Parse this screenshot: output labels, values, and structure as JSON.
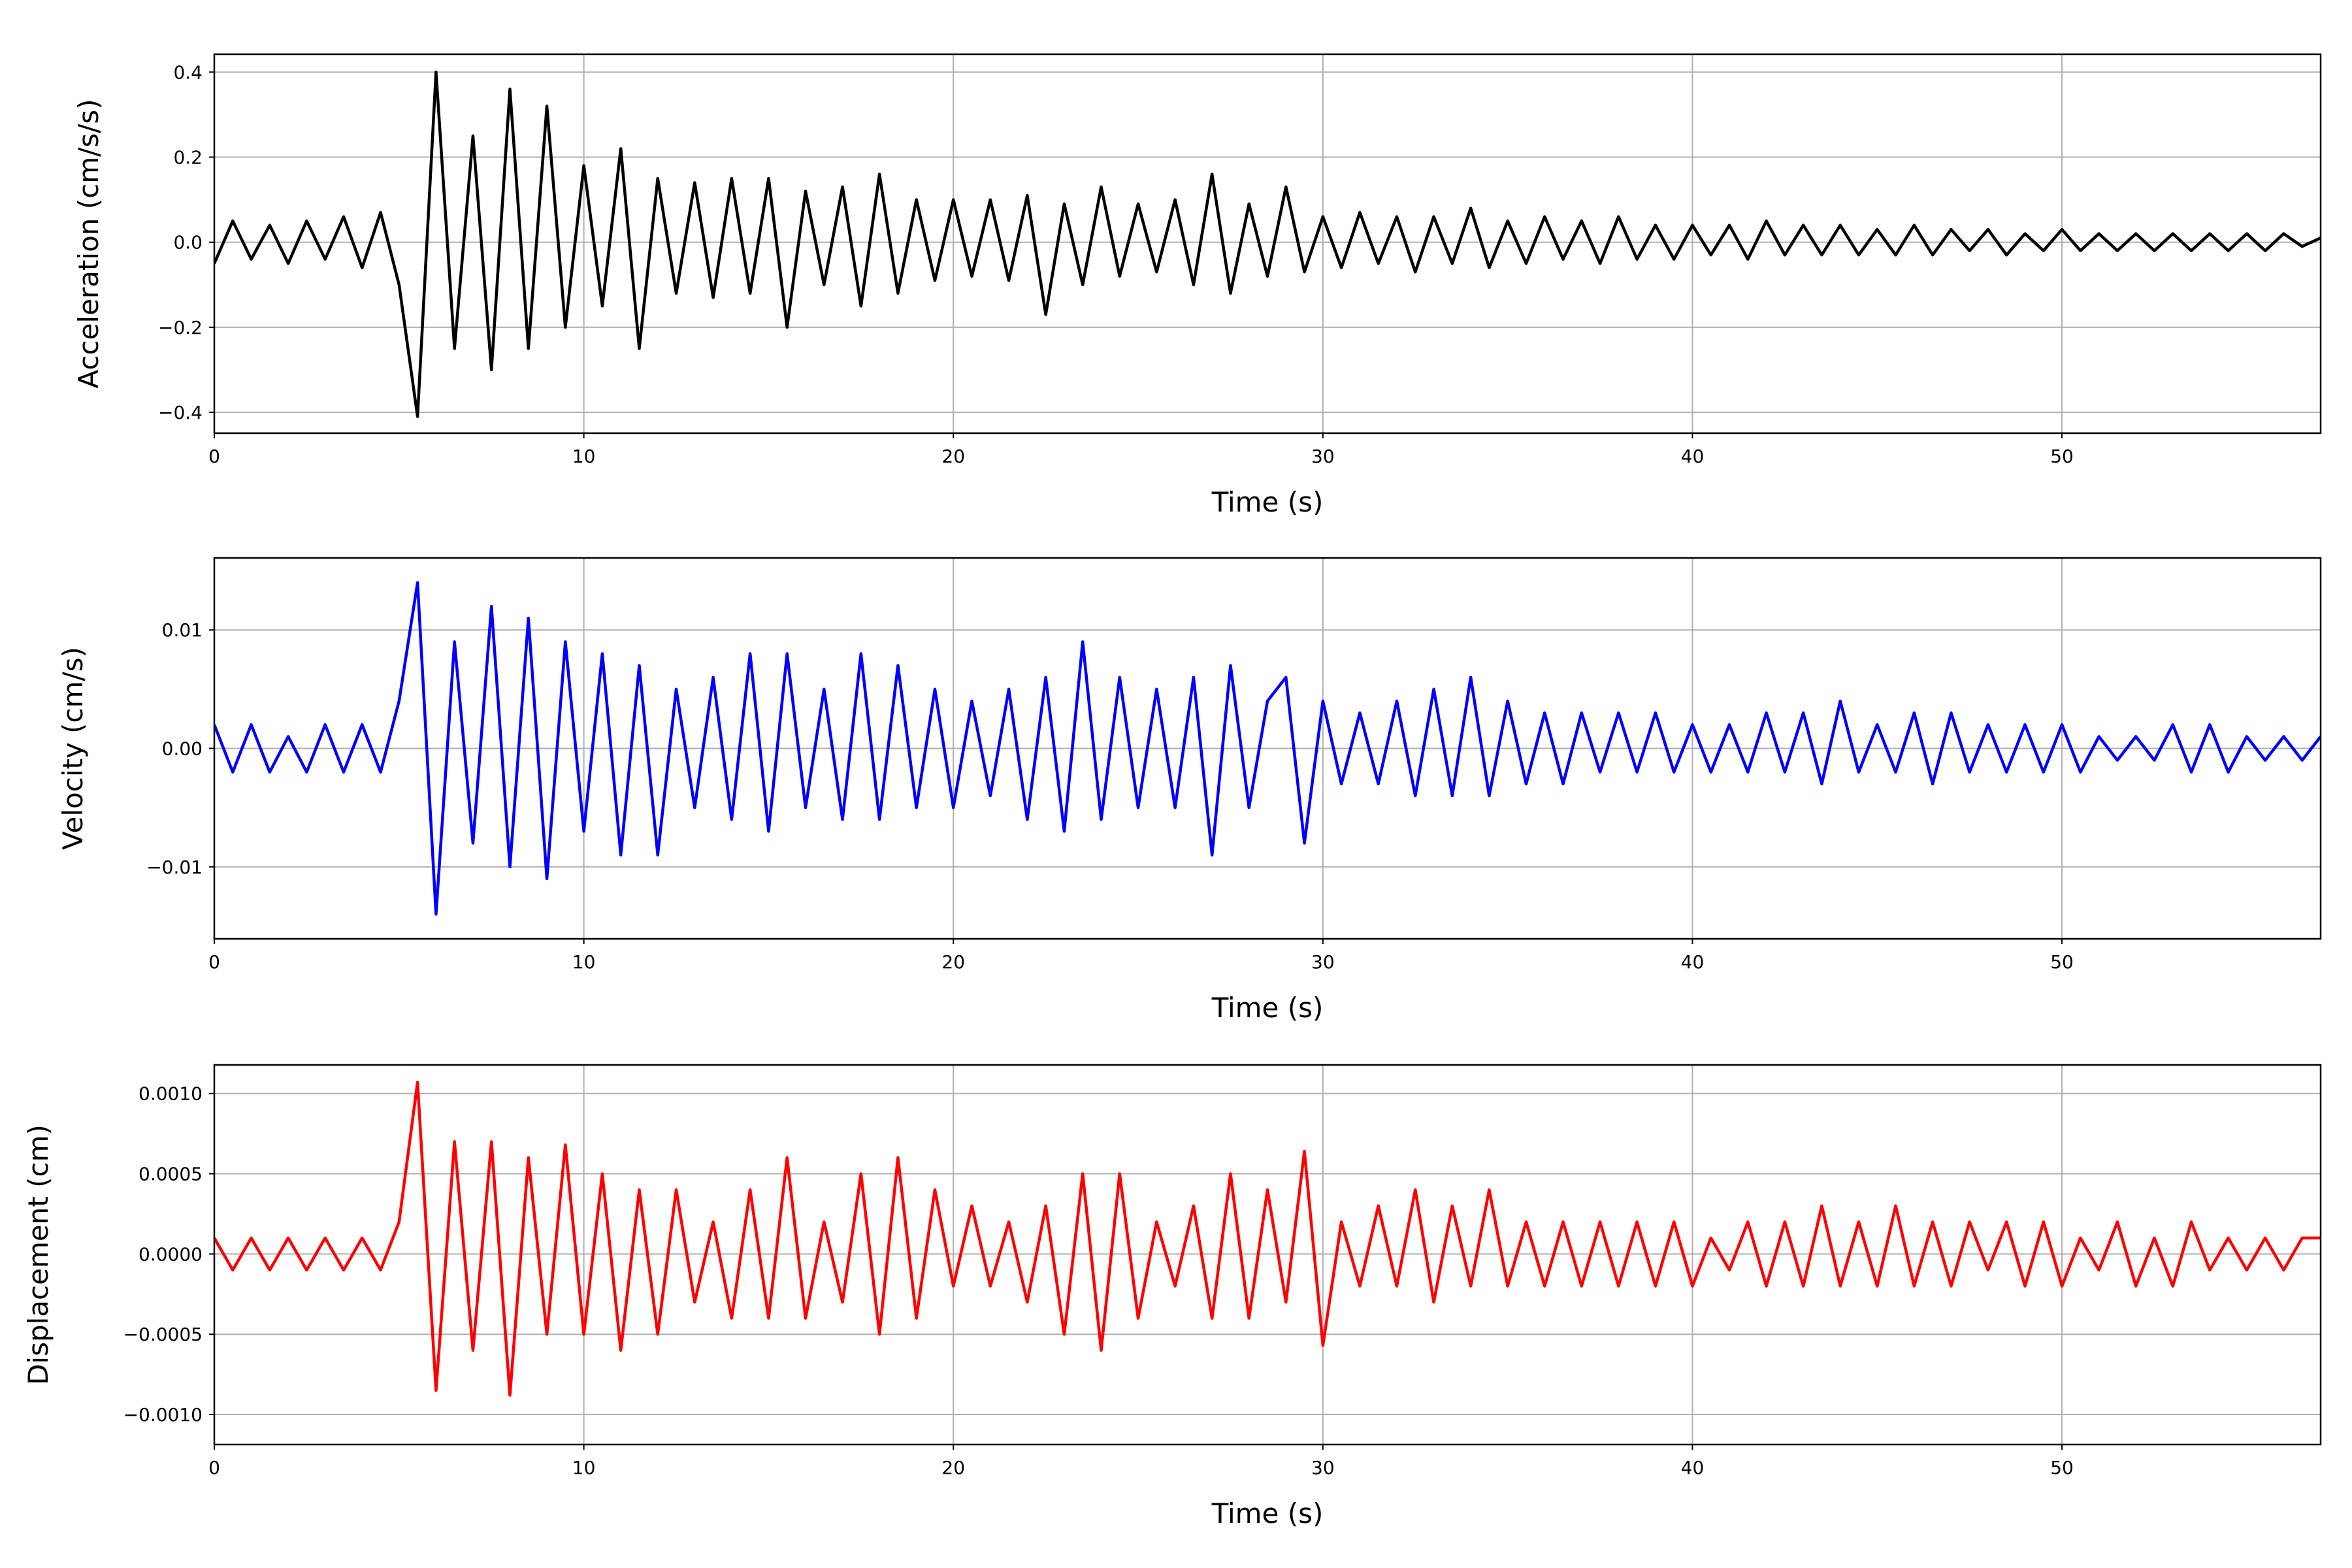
{
  "chart_data": [
    {
      "type": "line",
      "xlabel": "Time (s)",
      "ylabel": "Acceleration (cm/s/s)",
      "color": "#000000",
      "grid": true,
      "xlim": [
        0,
        57
      ],
      "xticks": [
        0,
        10,
        20,
        30,
        40,
        50
      ],
      "ylim": [
        -0.449,
        0.442
      ],
      "yticks": [
        {
          "value": -0.4,
          "label": "−0.4"
        },
        {
          "value": -0.2,
          "label": "−0.2"
        },
        {
          "value": 0,
          "label": "0.0"
        },
        0.2,
        0.4
      ],
      "x": [
        0,
        0.5,
        1,
        1.5,
        2,
        2.5,
        3,
        3.5,
        4,
        4.5,
        5,
        5.5,
        6,
        6.5,
        7,
        7.5,
        8,
        8.5,
        9,
        9.5,
        10,
        10.5,
        11,
        11.5,
        12,
        12.5,
        13,
        13.5,
        14,
        14.5,
        15,
        15.5,
        16,
        16.5,
        17,
        17.5,
        18,
        18.5,
        19,
        19.5,
        20,
        20.5,
        21,
        21.5,
        22,
        22.5,
        23,
        23.5,
        24,
        24.5,
        25,
        25.5,
        26,
        26.5,
        27,
        27.5,
        28,
        28.5,
        29,
        29.5,
        30,
        30.5,
        31,
        31.5,
        32,
        32.5,
        33,
        33.5,
        34,
        34.5,
        35,
        35.5,
        36,
        36.5,
        37,
        37.5,
        38,
        38.5,
        39,
        39.5,
        40,
        40.5,
        41,
        41.5,
        42,
        42.5,
        43,
        43.5,
        44,
        44.5,
        45,
        45.5,
        46,
        46.5,
        47,
        47.5,
        48,
        48.5,
        49,
        49.5,
        50,
        50.5,
        51,
        51.5,
        52,
        52.5,
        53,
        53.5,
        54,
        54.5,
        55,
        55.5,
        56,
        56.5,
        57
      ],
      "values": [
        -0.05,
        0.05,
        -0.04,
        0.04,
        -0.05,
        0.05,
        -0.04,
        0.06,
        -0.06,
        0.07,
        -0.1,
        -0.41,
        0.4,
        -0.25,
        0.25,
        -0.3,
        0.36,
        -0.25,
        0.32,
        -0.2,
        0.18,
        -0.15,
        0.22,
        -0.25,
        0.15,
        -0.12,
        0.14,
        -0.13,
        0.15,
        -0.12,
        0.15,
        -0.2,
        0.12,
        -0.1,
        0.13,
        -0.15,
        0.16,
        -0.12,
        0.1,
        -0.09,
        0.1,
        -0.08,
        0.1,
        -0.09,
        0.11,
        -0.17,
        0.09,
        -0.1,
        0.13,
        -0.08,
        0.09,
        -0.07,
        0.1,
        -0.1,
        0.16,
        -0.12,
        0.09,
        -0.08,
        0.13,
        -0.07,
        0.06,
        -0.06,
        0.07,
        -0.05,
        0.06,
        -0.07,
        0.06,
        -0.05,
        0.08,
        -0.06,
        0.05,
        -0.05,
        0.06,
        -0.04,
        0.05,
        -0.05,
        0.06,
        -0.04,
        0.04,
        -0.04,
        0.04,
        -0.03,
        0.04,
        -0.04,
        0.05,
        -0.03,
        0.04,
        -0.03,
        0.04,
        -0.03,
        0.03,
        -0.03,
        0.04,
        -0.03,
        0.03,
        -0.02,
        0.03,
        -0.03,
        0.02,
        -0.02,
        0.03,
        -0.02,
        0.02,
        -0.02,
        0.02,
        -0.02,
        0.02,
        -0.02,
        0.02,
        -0.02,
        0.02,
        -0.02,
        0.02,
        -0.01,
        0.01
      ]
    },
    {
      "type": "line",
      "xlabel": "Time (s)",
      "ylabel": "Velocity (cm/s)",
      "color": "#0000ff",
      "grid": true,
      "xlim": [
        0,
        57
      ],
      "xticks": [
        0,
        10,
        20,
        30,
        40,
        50
      ],
      "ylim": [
        -0.01608,
        0.01608
      ],
      "yticks": [
        {
          "value": -0.01,
          "label": "−0.01"
        },
        {
          "value": 0,
          "label": "0.00"
        },
        0.01
      ],
      "x": [
        0,
        0.5,
        1,
        1.5,
        2,
        2.5,
        3,
        3.5,
        4,
        4.5,
        5,
        5.5,
        6,
        6.5,
        7,
        7.5,
        8,
        8.5,
        9,
        9.5,
        10,
        10.5,
        11,
        11.5,
        12,
        12.5,
        13,
        13.5,
        14,
        14.5,
        15,
        15.5,
        16,
        16.5,
        17,
        17.5,
        18,
        18.5,
        19,
        19.5,
        20,
        20.5,
        21,
        21.5,
        22,
        22.5,
        23,
        23.5,
        24,
        24.5,
        25,
        25.5,
        26,
        26.5,
        27,
        27.5,
        28,
        28.5,
        29,
        29.5,
        30,
        30.5,
        31,
        31.5,
        32,
        32.5,
        33,
        33.5,
        34,
        34.5,
        35,
        35.5,
        36,
        36.5,
        37,
        37.5,
        38,
        38.5,
        39,
        39.5,
        40,
        40.5,
        41,
        41.5,
        42,
        42.5,
        43,
        43.5,
        44,
        44.5,
        45,
        45.5,
        46,
        46.5,
        47,
        47.5,
        48,
        48.5,
        49,
        49.5,
        50,
        50.5,
        51,
        51.5,
        52,
        52.5,
        53,
        53.5,
        54,
        54.5,
        55,
        55.5,
        56,
        56.5,
        57
      ],
      "values": [
        0.002,
        -0.002,
        0.002,
        -0.002,
        0.001,
        -0.002,
        0.002,
        -0.002,
        0.002,
        -0.002,
        0.004,
        0.014,
        -0.014,
        0.009,
        -0.008,
        0.012,
        -0.01,
        0.011,
        -0.011,
        0.009,
        -0.007,
        0.008,
        -0.009,
        0.007,
        -0.009,
        0.005,
        -0.005,
        0.006,
        -0.006,
        0.008,
        -0.007,
        0.008,
        -0.005,
        0.005,
        -0.006,
        0.008,
        -0.006,
        0.007,
        -0.005,
        0.005,
        -0.005,
        0.004,
        -0.004,
        0.005,
        -0.006,
        0.006,
        -0.007,
        0.009,
        -0.006,
        0.006,
        -0.005,
        0.005,
        -0.005,
        0.006,
        -0.009,
        0.007,
        -0.005,
        0.004,
        0.006,
        -0.008,
        0.004,
        -0.003,
        0.003,
        -0.003,
        0.004,
        -0.004,
        0.005,
        -0.004,
        0.006,
        -0.004,
        0.004,
        -0.003,
        0.003,
        -0.003,
        0.003,
        -0.002,
        0.003,
        -0.002,
        0.003,
        -0.002,
        0.002,
        -0.002,
        0.002,
        -0.002,
        0.003,
        -0.002,
        0.003,
        -0.003,
        0.004,
        -0.002,
        0.002,
        -0.002,
        0.003,
        -0.003,
        0.003,
        -0.002,
        0.002,
        -0.002,
        0.002,
        -0.002,
        0.002,
        -0.002,
        0.001,
        -0.001,
        0.001,
        -0.001,
        0.002,
        -0.002,
        0.002,
        -0.002,
        0.001,
        -0.001,
        0.001,
        -0.001,
        0.001
      ]
    },
    {
      "type": "line",
      "xlabel": "Time (s)",
      "ylabel": "Displacement (cm)",
      "color": "#ff0000",
      "grid": true,
      "xlim": [
        0,
        57
      ],
      "xticks": [
        0,
        10,
        20,
        30,
        40,
        50
      ],
      "ylim": [
        -0.001187,
        0.001178
      ],
      "yticks": [
        {
          "value": -0.001,
          "label": "−0.0010"
        },
        {
          "value": -0.0005,
          "label": "−0.0005"
        },
        {
          "value": 0,
          "label": "0.0000"
        },
        {
          "value": 0.0005,
          "label": "0.0005"
        },
        {
          "value": 0.001,
          "label": "0.0010"
        }
      ],
      "x": [
        0,
        0.5,
        1,
        1.5,
        2,
        2.5,
        3,
        3.5,
        4,
        4.5,
        5,
        5.5,
        6,
        6.5,
        7,
        7.5,
        8,
        8.5,
        9,
        9.5,
        10,
        10.5,
        11,
        11.5,
        12,
        12.5,
        13,
        13.5,
        14,
        14.5,
        15,
        15.5,
        16,
        16.5,
        17,
        17.5,
        18,
        18.5,
        19,
        19.5,
        20,
        20.5,
        21,
        21.5,
        22,
        22.5,
        23,
        23.5,
        24,
        24.5,
        25,
        25.5,
        26,
        26.5,
        27,
        27.5,
        28,
        28.5,
        29,
        29.5,
        30,
        30.5,
        31,
        31.5,
        32,
        32.5,
        33,
        33.5,
        34,
        34.5,
        35,
        35.5,
        36,
        36.5,
        37,
        37.5,
        38,
        38.5,
        39,
        39.5,
        40,
        40.5,
        41,
        41.5,
        42,
        42.5,
        43,
        43.5,
        44,
        44.5,
        45,
        45.5,
        46,
        46.5,
        47,
        47.5,
        48,
        48.5,
        49,
        49.5,
        50,
        50.5,
        51,
        51.5,
        52,
        52.5,
        53,
        53.5,
        54,
        54.5,
        55,
        55.5,
        56,
        56.5,
        57
      ],
      "values": [
        0.0001,
        -0.0001,
        0.0001,
        -0.0001,
        0.0001,
        -0.0001,
        0.0001,
        -0.0001,
        0.0001,
        -0.0001,
        0.0002,
        0.00107,
        -0.00085,
        0.0007,
        -0.0006,
        0.0007,
        -0.00088,
        0.0006,
        -0.0005,
        0.00068,
        -0.0005,
        0.0005,
        -0.0006,
        0.0004,
        -0.0005,
        0.0004,
        -0.0003,
        0.0002,
        -0.0004,
        0.0004,
        -0.0004,
        0.0006,
        -0.0004,
        0.0002,
        -0.0003,
        0.0005,
        -0.0005,
        0.0006,
        -0.0004,
        0.0004,
        -0.0002,
        0.0003,
        -0.0002,
        0.0002,
        -0.0003,
        0.0003,
        -0.0005,
        0.0005,
        -0.0006,
        0.0005,
        -0.0004,
        0.0002,
        -0.0002,
        0.0003,
        -0.0004,
        0.0005,
        -0.0004,
        0.0004,
        -0.0003,
        0.00064,
        -0.00057,
        0.0002,
        -0.0002,
        0.0003,
        -0.0002,
        0.0004,
        -0.0003,
        0.0003,
        -0.0002,
        0.0004,
        -0.0002,
        0.0002,
        -0.0002,
        0.0002,
        -0.0002,
        0.0002,
        -0.0002,
        0.0002,
        -0.0002,
        0.0002,
        -0.0002,
        0.0001,
        -0.0001,
        0.0002,
        -0.0002,
        0.0002,
        -0.0002,
        0.0003,
        -0.0002,
        0.0002,
        -0.0002,
        0.0003,
        -0.0002,
        0.0002,
        -0.0002,
        0.0002,
        -0.0001,
        0.0002,
        -0.0002,
        0.0002,
        -0.0002,
        0.0001,
        -0.0001,
        0.0002,
        -0.0002,
        0.0001,
        -0.0002,
        0.0002,
        -0.0001,
        0.0001,
        -0.0001,
        0.0001,
        -0.0001,
        0.0001,
        0.0001
      ]
    }
  ]
}
